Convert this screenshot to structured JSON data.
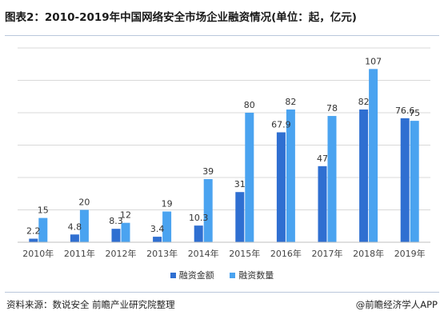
{
  "title": "图表2：2010-2019年中国网络安全市场企业融资情况(单位：起，亿元)",
  "source": "资料来源：数说安全  前瞻产业研究院整理",
  "brand": "@前瞻经济学人APP",
  "colors": {
    "amount": "#2f6fd1",
    "count": "#4aa3f0",
    "grid": "#d9d9d9"
  },
  "chart_data": {
    "type": "bar",
    "title": "图表2：2010-2019年中国网络安全市场企业融资情况(单位：起，亿元)",
    "categories": [
      "2010年",
      "2011年",
      "2012年",
      "2013年",
      "2014年",
      "2015年",
      "2016年",
      "2017年",
      "2018年",
      "2019年"
    ],
    "series": [
      {
        "name": "融资金额",
        "values": [
          2.2,
          4.8,
          8.3,
          3.4,
          10.3,
          31,
          67.9,
          47,
          82,
          76.6
        ],
        "labels": [
          "2.2",
          "4.8",
          "8.3",
          "3.4",
          "10.3",
          "31",
          "67.9",
          "47",
          "82",
          "76.6"
        ]
      },
      {
        "name": "融资数量",
        "values": [
          15,
          20,
          12,
          19,
          39,
          80,
          82,
          78,
          107,
          75
        ],
        "labels": [
          "15",
          "20",
          "12",
          "19",
          "39",
          "80",
          "82",
          "78",
          "107",
          "75"
        ]
      }
    ],
    "ylim": [
      0,
      120
    ],
    "yticks": [
      0,
      20,
      40,
      60,
      80,
      100,
      120
    ],
    "grid": true,
    "legend_position": "bottom"
  }
}
